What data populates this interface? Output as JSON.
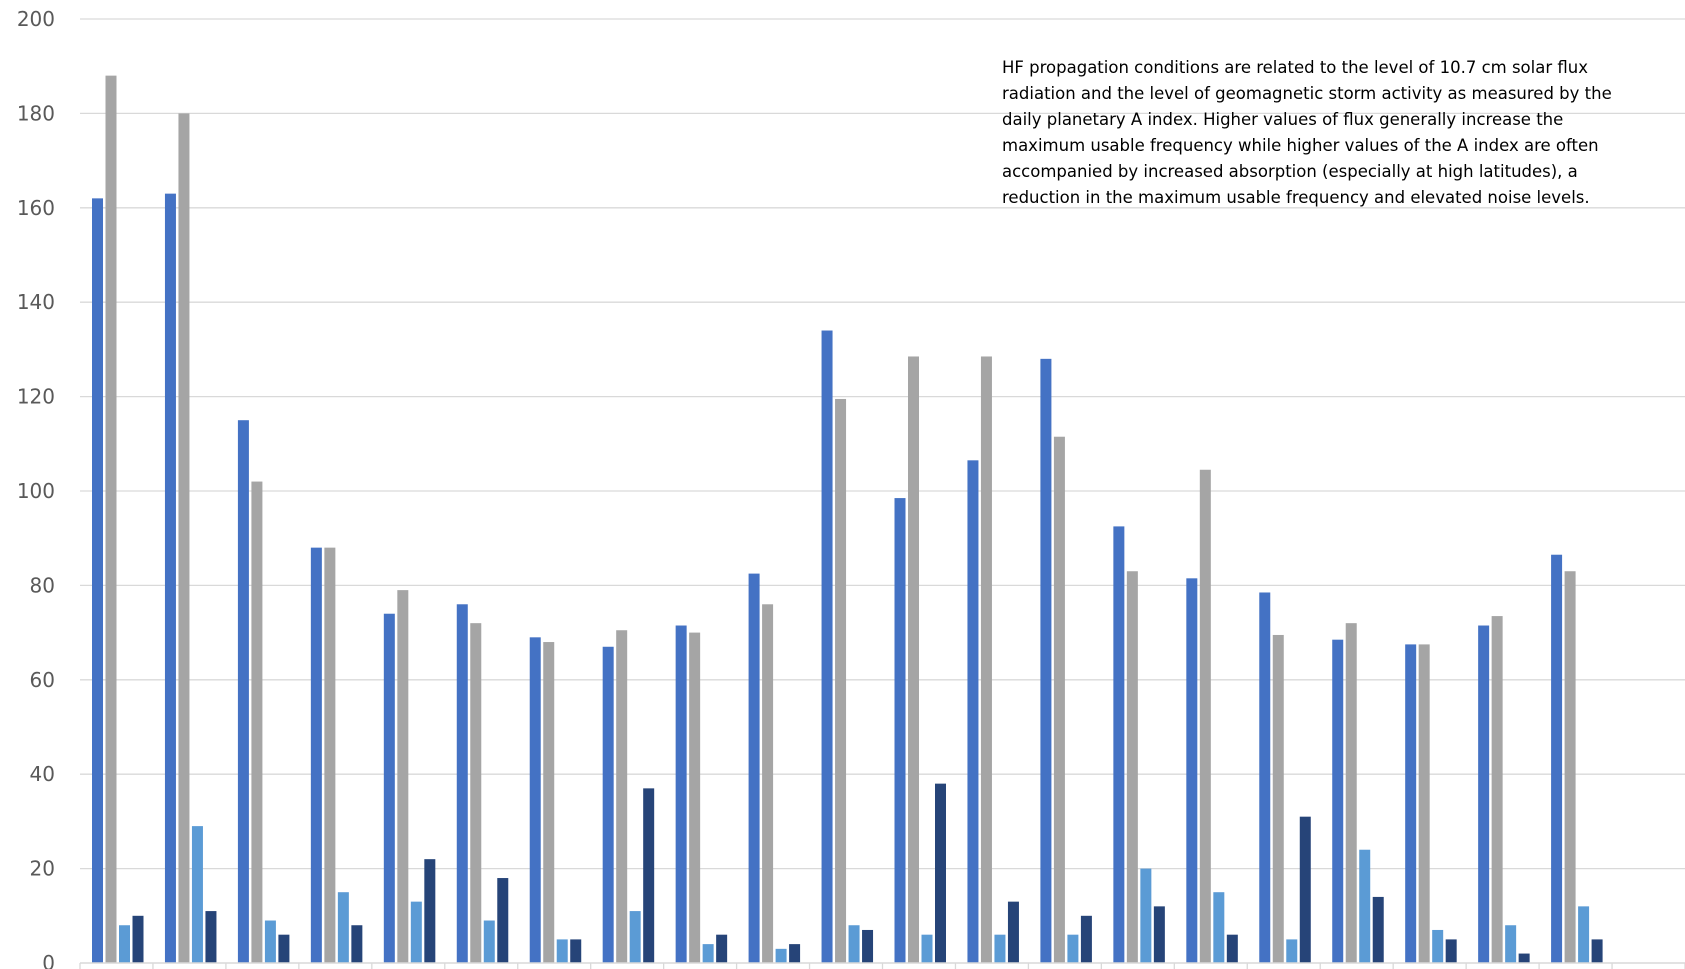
{
  "chart_data": {
    "type": "bar",
    "title": "",
    "xlabel": "",
    "ylabel": "",
    "ylim": [
      0,
      200
    ],
    "yticks": [
      0,
      20,
      40,
      60,
      80,
      100,
      120,
      140,
      160,
      180,
      200
    ],
    "grid": true,
    "categories": [
      "",
      "",
      "",
      "",
      "",
      "",
      "",
      "",
      "",
      "",
      "",
      "",
      "",
      "",
      "",
      "",
      "",
      "",
      "",
      "",
      "",
      ""
    ],
    "series": [
      {
        "color": "#4472c4",
        "values": [
          162,
          163,
          115,
          88,
          74,
          76,
          69,
          67,
          71.5,
          82.5,
          134,
          98.5,
          106.5,
          128,
          92.5,
          81.5,
          78.5,
          68.5,
          67.5,
          71.5,
          86.5,
          0
        ]
      },
      {
        "color": "#a5a5a5",
        "values": [
          188,
          180,
          102,
          88,
          79,
          72,
          68,
          70.5,
          70,
          76,
          119.5,
          128.5,
          128.5,
          111.5,
          83,
          104.5,
          69.5,
          72,
          67.5,
          73.5,
          83,
          0
        ]
      },
      {
        "color": "#5b9bd5",
        "values": [
          8,
          29,
          9,
          15,
          13,
          9,
          5,
          11,
          4,
          3,
          8,
          6,
          6,
          6,
          20,
          15,
          5,
          24,
          7,
          8,
          12,
          0
        ]
      },
      {
        "color": "#264478",
        "values": [
          10,
          11,
          6,
          8,
          22,
          18,
          5,
          37,
          6,
          4,
          7,
          38,
          13,
          10,
          12,
          6,
          31,
          14,
          5,
          2,
          5,
          0
        ]
      }
    ],
    "annotation": "HF propagation conditions are related to the level of 10.7 cm solar flux\nradiation and the level of geomagnetic storm activity as measured by the\ndaily planetary A index. Higher values of flux generally increase the\nmaximum usable frequency while higher values of the A index are often\naccompanied by increased absorption (especially at high latitudes), a\nreduction in the maximum usable frequency and elevated noise levels."
  }
}
